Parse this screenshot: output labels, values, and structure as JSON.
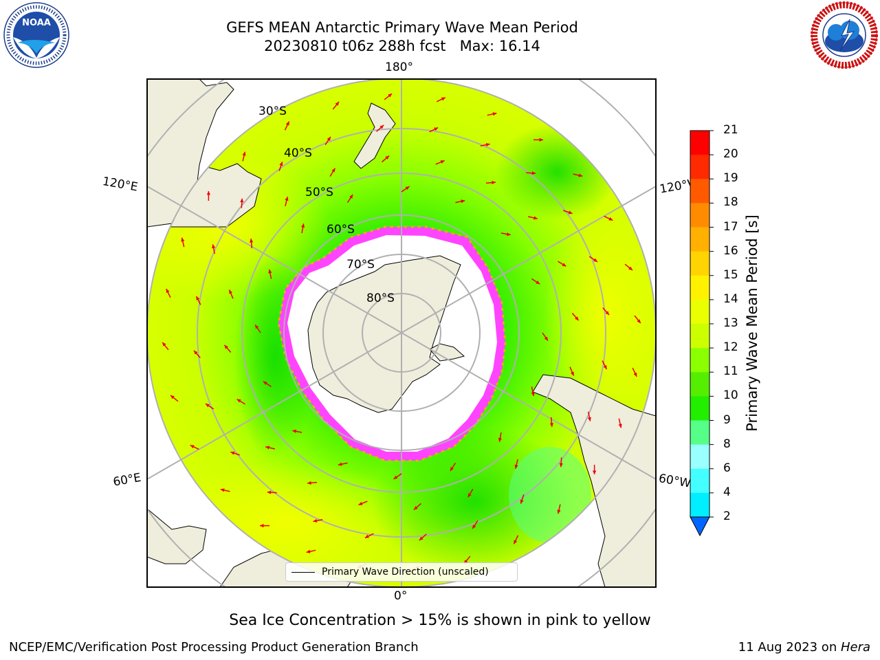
{
  "header": {
    "title_line1": "GEFS MEAN Antarctic Primary Wave Mean Period",
    "title_line2": "20230810 t06z 288h fcst   Max: 16.14"
  },
  "logos": {
    "left": "noaa-logo",
    "right": "national-weather-service-logo",
    "left_ring_text": "NATIONAL OCEANIC AND ATMOSPHERIC ADMINISTRATION · U.S. DEPARTMENT OF COMMERCE",
    "left_center_text": "NOAA",
    "right_ring_text": "NATIONAL WEATHER SERVICE"
  },
  "map": {
    "longitude_labels": {
      "top": "180°",
      "bottom": "0°",
      "upper_left": "120°E",
      "upper_right": "120°W",
      "lower_left": "60°E",
      "lower_right": "60°W"
    },
    "latitude_labels": [
      "30°S",
      "40°S",
      "50°S",
      "60°S",
      "70°S",
      "80°S"
    ],
    "legend_label": "Primary Wave Direction (unscaled)",
    "caption": "Sea Ice Concentration > 15% is shown in pink to yellow"
  },
  "colorbar": {
    "label": "Primary Wave Mean Period [s]",
    "ticks": [
      "21",
      "20",
      "19",
      "18",
      "17",
      "16",
      "15",
      "14",
      "13",
      "12",
      "11",
      "10",
      "9",
      "8",
      "6",
      "4",
      "2"
    ],
    "colors": [
      "#ff0000",
      "#ff2a00",
      "#ff5a00",
      "#ff8c00",
      "#ffb000",
      "#ffd400",
      "#fff200",
      "#eaff00",
      "#ccff00",
      "#8cff00",
      "#55ee00",
      "#22ee00",
      "#55ff88",
      "#99ffff",
      "#44ffff",
      "#00eeff",
      "#00aaff",
      "#0066ff"
    ]
  },
  "footer": {
    "left": "NCEP/EMC/Verification Post Processing Product Generation Branch",
    "right_date": "11 Aug 2023 on ",
    "right_host": "Hera"
  }
}
